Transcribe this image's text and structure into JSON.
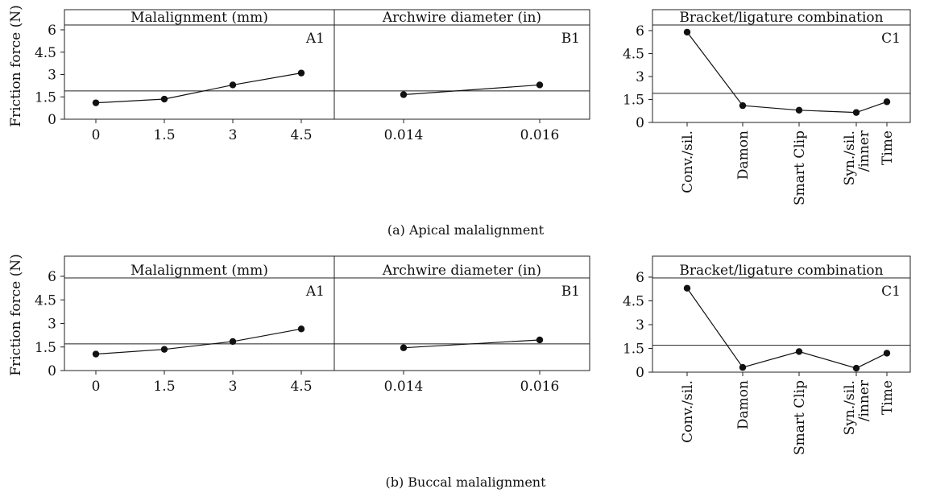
{
  "figure": {
    "y_axis_label": "Friction force (N)",
    "y_ticks": [
      "0",
      "1.5",
      "3",
      "4.5",
      "6"
    ],
    "colors": {
      "ink": "#111111",
      "background": "#ffffff"
    }
  },
  "chart_data": [
    {
      "type": "line",
      "panel": "a",
      "caption": "(a)  Apical malalignment",
      "ylim": [
        0,
        7
      ],
      "grand_mean": 1.9,
      "subplots": [
        {
          "title": "Malalignment (mm)",
          "tag": "A1",
          "categories": [
            "0",
            "1.5",
            "3",
            "4.5"
          ],
          "values": [
            1.1,
            1.35,
            2.3,
            3.1
          ]
        },
        {
          "title": "Archwire diameter (in)",
          "tag": "B1",
          "categories": [
            "0.014",
            "0.016"
          ],
          "values": [
            1.65,
            2.3
          ]
        },
        {
          "title": "Bracket/ligature combination",
          "tag": "C1",
          "categories": [
            "Conv./sil.",
            "Damon",
            "Smart Clip",
            "Syn./sil.\n/inner",
            "Time"
          ],
          "values": [
            5.9,
            1.1,
            0.8,
            0.65,
            1.35
          ]
        }
      ]
    },
    {
      "type": "line",
      "panel": "b",
      "caption": "(b)  Buccal malalignment",
      "ylim": [
        0,
        7
      ],
      "grand_mean": 1.7,
      "subplots": [
        {
          "title": "Malalignment (mm)",
          "tag": "A1",
          "categories": [
            "0",
            "1.5",
            "3",
            "4.5"
          ],
          "values": [
            1.05,
            1.35,
            1.85,
            2.65
          ]
        },
        {
          "title": "Archwire diameter (in)",
          "tag": "B1",
          "categories": [
            "0.014",
            "0.016"
          ],
          "values": [
            1.45,
            1.95
          ]
        },
        {
          "title": "Bracket/ligature combination",
          "tag": "C1",
          "categories": [
            "Conv./sil.",
            "Damon",
            "Smart Clip",
            "Syn./sil.\n/inner",
            "Time"
          ],
          "values": [
            5.3,
            0.3,
            1.3,
            0.25,
            1.2
          ]
        }
      ]
    }
  ]
}
